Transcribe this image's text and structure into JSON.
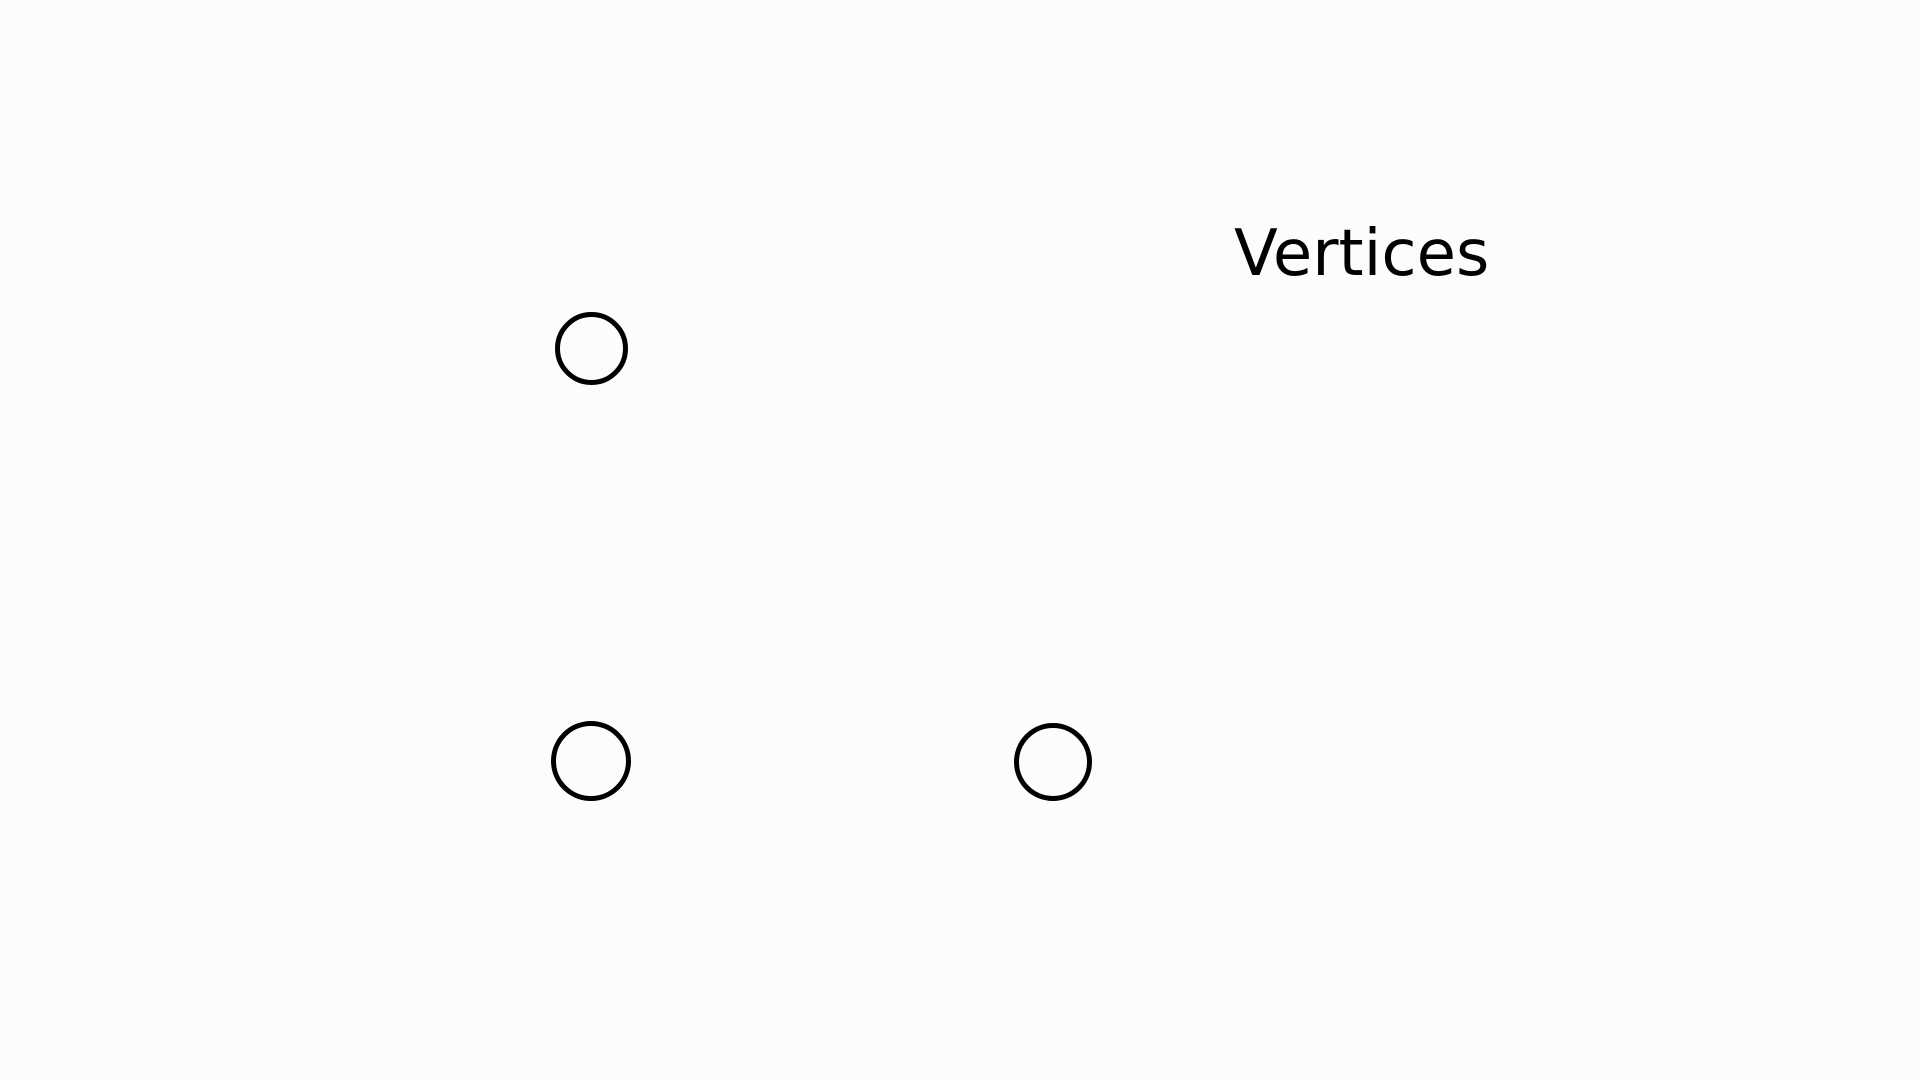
{
  "diagram": {
    "title": "Vertices",
    "vertex_count": 3,
    "stroke_color": "#000000",
    "background_color": "#fbfdfb",
    "vertices": [
      {
        "name": "vertex-top-left"
      },
      {
        "name": "vertex-bottom-left"
      },
      {
        "name": "vertex-bottom-right"
      }
    ]
  }
}
